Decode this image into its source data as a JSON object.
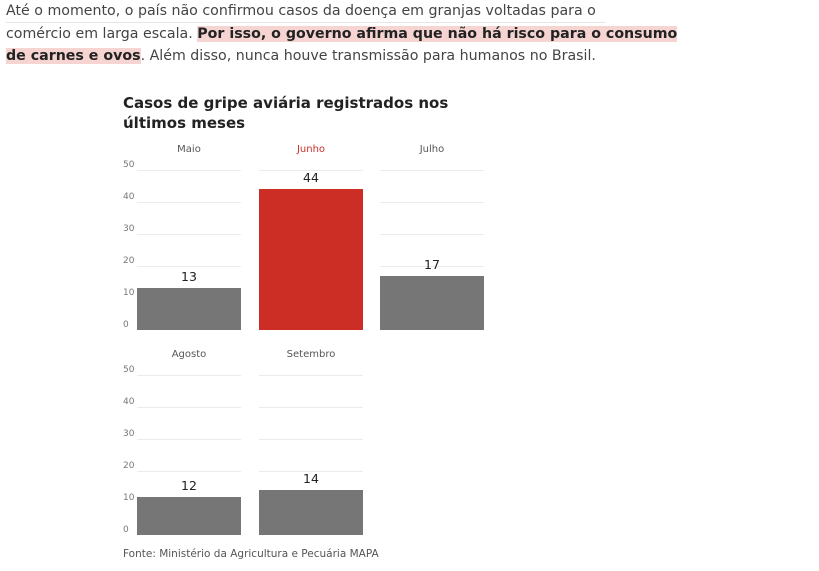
{
  "article": {
    "line1": "Até o momento, o país não confirmou casos da doença em granjas voltadas para o",
    "line2_plain": "comércio em larga escala. ",
    "line2_highlight": "Por isso, o governo afirma que não há risco para o consumo",
    "line3_highlight": "de carnes e ovos",
    "line3_plain": ". Além disso, nunca houve transmissão para humanos no Brasil."
  },
  "chart_data": {
    "type": "bar",
    "title": "Casos de gripe aviária registrados nos últimos meses",
    "categories": [
      "Maio",
      "Junho",
      "Julho",
      "Agosto",
      "Setembro"
    ],
    "values": [
      13,
      44,
      17,
      12,
      14
    ],
    "ylim": [
      0,
      50
    ],
    "yticks": [
      "0",
      "10",
      "20",
      "30",
      "40",
      "50"
    ],
    "highlight_category": "Junho",
    "colors": {
      "bar": "#767676",
      "highlight": "#cc2e26"
    },
    "grid": true,
    "source": "Fonte: Ministério da Agricultura e Pecuária MAPA"
  }
}
